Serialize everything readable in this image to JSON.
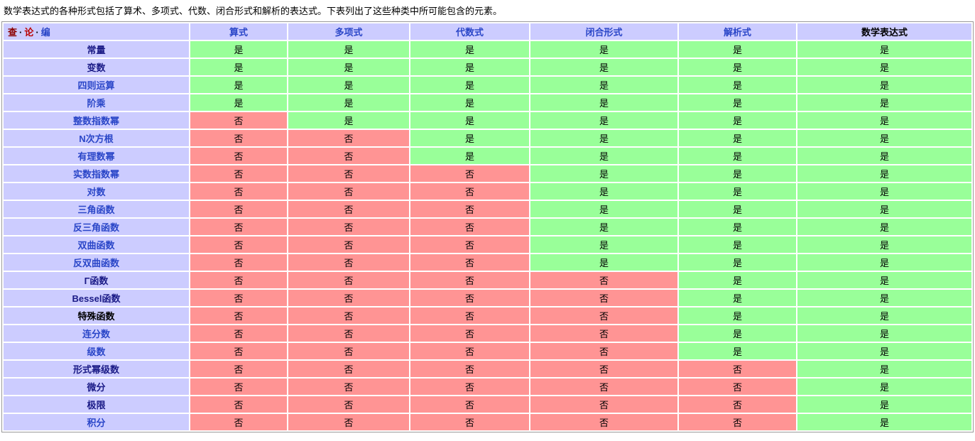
{
  "intro": "数学表达式的各种形式包括了算术、多项式、代数、闭合形式和解析的表达式。下表列出了这些种类中所可能包含的元素。",
  "palette": {
    "header_bg": "#ccccff",
    "yes_bg": "#99ff99",
    "no_bg": "#ff9494",
    "link_blue": "#2a46c8",
    "link_visited_navy": "#1a1a86",
    "nav_view_red": "#8b0000",
    "nav_talk_red": "#ba0000",
    "table_border": "#9a9a9a"
  },
  "table": {
    "nav": {
      "separator": "·",
      "items": [
        {
          "name": "view",
          "label": "查",
          "style": "maroon"
        },
        {
          "name": "talk",
          "label": "论",
          "style": "red"
        },
        {
          "name": "edit",
          "label": "编",
          "style": "blue"
        }
      ]
    },
    "yes_label": "是",
    "no_label": "否",
    "columns": [
      {
        "label": "算式",
        "link": true
      },
      {
        "label": "多项式",
        "link": true
      },
      {
        "label": "代数式",
        "link": true
      },
      {
        "label": "闭合形式",
        "link": true
      },
      {
        "label": "解析式",
        "link": true
      },
      {
        "label": "数学表达式",
        "link": false
      }
    ],
    "rows": [
      {
        "label": "常量",
        "link": "visited",
        "values": [
          "是",
          "是",
          "是",
          "是",
          "是",
          "是"
        ]
      },
      {
        "label": "变数",
        "link": "visited",
        "values": [
          "是",
          "是",
          "是",
          "是",
          "是",
          "是"
        ]
      },
      {
        "label": "四则运算",
        "link": "link",
        "values": [
          "是",
          "是",
          "是",
          "是",
          "是",
          "是"
        ]
      },
      {
        "label": "阶乘",
        "link": "link",
        "values": [
          "是",
          "是",
          "是",
          "是",
          "是",
          "是"
        ]
      },
      {
        "label": "整数指数幂",
        "link": "link",
        "values": [
          "否",
          "是",
          "是",
          "是",
          "是",
          "是"
        ]
      },
      {
        "label": "N次方根",
        "link": "link",
        "values": [
          "否",
          "否",
          "是",
          "是",
          "是",
          "是"
        ]
      },
      {
        "label": "有理数幂",
        "link": "link",
        "values": [
          "否",
          "否",
          "是",
          "是",
          "是",
          "是"
        ]
      },
      {
        "label": "实数指数幂",
        "link": "link",
        "values": [
          "否",
          "否",
          "否",
          "是",
          "是",
          "是"
        ]
      },
      {
        "label": "对数",
        "link": "link",
        "values": [
          "否",
          "否",
          "否",
          "是",
          "是",
          "是"
        ]
      },
      {
        "label": "三角函数",
        "link": "link",
        "values": [
          "否",
          "否",
          "否",
          "是",
          "是",
          "是"
        ]
      },
      {
        "label": "反三角函数",
        "link": "link",
        "values": [
          "否",
          "否",
          "否",
          "是",
          "是",
          "是"
        ]
      },
      {
        "label": "双曲函数",
        "link": "link",
        "values": [
          "否",
          "否",
          "否",
          "是",
          "是",
          "是"
        ]
      },
      {
        "label": "反双曲函数",
        "link": "link",
        "values": [
          "否",
          "否",
          "否",
          "是",
          "是",
          "是"
        ]
      },
      {
        "label": "Γ函数",
        "link": "visited",
        "values": [
          "否",
          "否",
          "否",
          "否",
          "是",
          "是"
        ]
      },
      {
        "label": "Bessel函数",
        "link": "visited",
        "values": [
          "否",
          "否",
          "否",
          "否",
          "是",
          "是"
        ]
      },
      {
        "label": "特殊函数",
        "link": "plain",
        "values": [
          "否",
          "否",
          "否",
          "否",
          "是",
          "是"
        ]
      },
      {
        "label": "连分数",
        "link": "link",
        "values": [
          "否",
          "否",
          "否",
          "否",
          "是",
          "是"
        ]
      },
      {
        "label": "级数",
        "link": "link",
        "values": [
          "否",
          "否",
          "否",
          "否",
          "是",
          "是"
        ]
      },
      {
        "label": "形式幂级数",
        "link": "visited",
        "values": [
          "否",
          "否",
          "否",
          "否",
          "否",
          "是"
        ]
      },
      {
        "label": "微分",
        "link": "visited",
        "values": [
          "否",
          "否",
          "否",
          "否",
          "否",
          "是"
        ]
      },
      {
        "label": "极限",
        "link": "visited",
        "values": [
          "否",
          "否",
          "否",
          "否",
          "否",
          "是"
        ]
      },
      {
        "label": "积分",
        "link": "link",
        "values": [
          "否",
          "否",
          "否",
          "否",
          "否",
          "是"
        ]
      }
    ]
  }
}
